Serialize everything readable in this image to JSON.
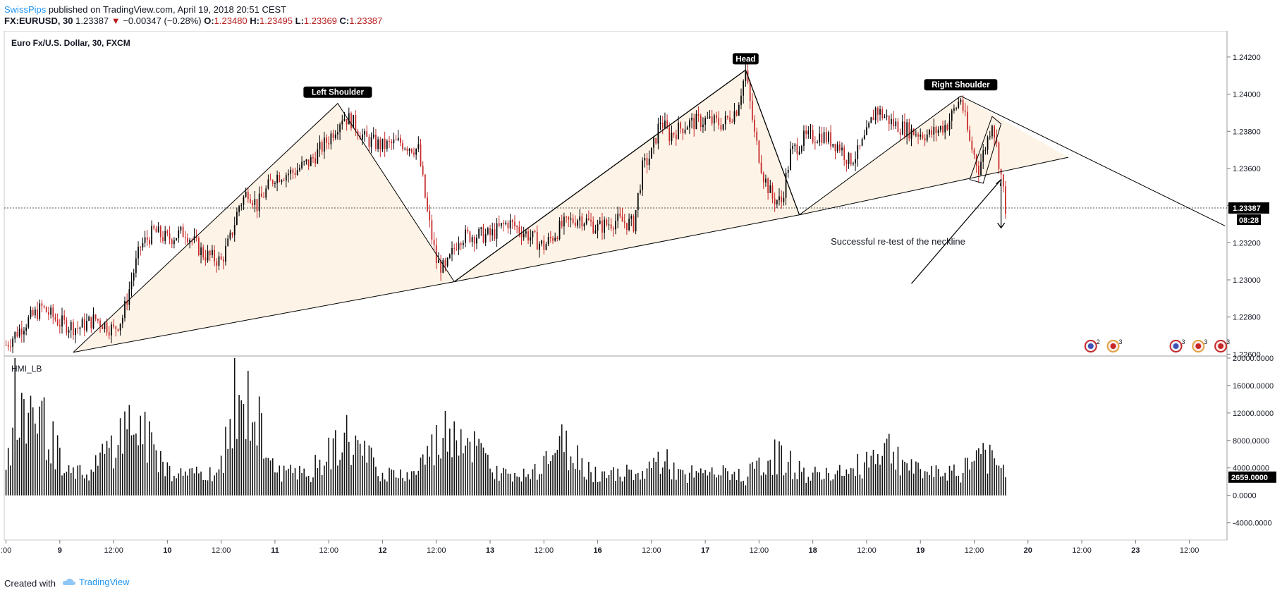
{
  "header": {
    "author": "SwissPips",
    "published_text": " published on TradingView.com, April 19, 2018 20:51 CEST",
    "symbol": "FX:EURUSD, 30",
    "last_price": "1.23387",
    "change": "−0.00347 (−0.28%)",
    "open_label": "O:",
    "open": "1.23480",
    "high_label": "H:",
    "high": "1.23495",
    "low_label": "L:",
    "low": "1.23369",
    "close_label": "C:",
    "close": "1.23387"
  },
  "footer": {
    "created_with": "Created with",
    "brand": "TradingView"
  },
  "colors": {
    "up": "#000000",
    "down": "#c62828",
    "pattern_fill": "#fdf3e6",
    "accent": "#2196f3"
  },
  "chart_data": {
    "type": "candlestick",
    "title": "Euro Fx/U.S. Dollar, 30, FXCM",
    "price_axis": {
      "ticks": [
        1.226,
        1.228,
        1.23,
        1.232,
        1.234,
        1.236,
        1.238,
        1.24,
        1.242
      ],
      "tick_labels": [
        "1.22600",
        "1.22800",
        "1.23000",
        "1.23200",
        "1.23400",
        "1.23600",
        "1.23800",
        "1.24000",
        "1.24200"
      ],
      "ylim": [
        1.2259,
        1.2434
      ],
      "current_price": 1.23387,
      "current_price_label": "1.23387",
      "countdown_label": "08:28"
    },
    "time_axis": {
      "labels": [
        ":00",
        "9",
        "12:00",
        "10",
        "12:00",
        "11",
        "12:00",
        "12",
        "12:00",
        "13",
        "12:00",
        "16",
        "12:00",
        "17",
        "12:00",
        "18",
        "12:00",
        "19",
        "12:00",
        "20",
        "12:00",
        "23",
        "12:00"
      ],
      "bold": [
        false,
        true,
        false,
        true,
        false,
        true,
        false,
        true,
        false,
        true,
        false,
        true,
        false,
        true,
        false,
        true,
        false,
        true,
        false,
        true,
        false,
        true,
        false
      ],
      "x_hours": [
        0,
        12,
        24,
        36,
        48,
        60,
        72,
        84,
        96,
        108,
        120,
        132,
        144,
        156,
        168,
        180,
        192,
        204,
        216,
        228,
        240,
        252,
        264
      ],
      "xlim": [
        -0.4,
        272.4
      ],
      "last_candle_hour": 223
    },
    "price_path": [
      [
        0,
        1.2265
      ],
      [
        4,
        1.2276
      ],
      [
        8,
        1.2285
      ],
      [
        12,
        1.2277
      ],
      [
        16,
        1.2274
      ],
      [
        20,
        1.2279
      ],
      [
        24,
        1.2273
      ],
      [
        26,
        1.228
      ],
      [
        28,
        1.23
      ],
      [
        30,
        1.2318
      ],
      [
        33,
        1.2326
      ],
      [
        36,
        1.2322
      ],
      [
        40,
        1.2326
      ],
      [
        44,
        1.2314
      ],
      [
        48,
        1.231
      ],
      [
        50,
        1.2322
      ],
      [
        52,
        1.234
      ],
      [
        54,
        1.2348
      ],
      [
        56,
        1.234
      ],
      [
        60,
        1.2356
      ],
      [
        64,
        1.2358
      ],
      [
        68,
        1.2364
      ],
      [
        72,
        1.2376
      ],
      [
        75,
        1.2388
      ],
      [
        77,
        1.2386
      ],
      [
        80,
        1.2376
      ],
      [
        84,
        1.2372
      ],
      [
        88,
        1.2374
      ],
      [
        92,
        1.237
      ],
      [
        94,
        1.2336
      ],
      [
        96,
        1.231
      ],
      [
        98,
        1.2305
      ],
      [
        101,
        1.2323
      ],
      [
        104,
        1.2324
      ],
      [
        108,
        1.2324
      ],
      [
        112,
        1.2331
      ],
      [
        116,
        1.2325
      ],
      [
        120,
        1.2318
      ],
      [
        124,
        1.2329
      ],
      [
        128,
        1.2334
      ],
      [
        132,
        1.2328
      ],
      [
        136,
        1.2332
      ],
      [
        140,
        1.233
      ],
      [
        142,
        1.236
      ],
      [
        144,
        1.2368
      ],
      [
        146,
        1.2386
      ],
      [
        148,
        1.2378
      ],
      [
        152,
        1.2384
      ],
      [
        156,
        1.2386
      ],
      [
        160,
        1.2384
      ],
      [
        163,
        1.2392
      ],
      [
        165,
        1.2412
      ],
      [
        167,
        1.2378
      ],
      [
        169,
        1.2356
      ],
      [
        171,
        1.2344
      ],
      [
        173,
        1.2342
      ],
      [
        175,
        1.2368
      ],
      [
        178,
        1.2376
      ],
      [
        182,
        1.2378
      ],
      [
        186,
        1.2372
      ],
      [
        188,
        1.2364
      ],
      [
        190,
        1.2368
      ],
      [
        192,
        1.2378
      ],
      [
        194,
        1.2392
      ],
      [
        196,
        1.2388
      ],
      [
        198,
        1.2384
      ],
      [
        202,
        1.238
      ],
      [
        206,
        1.2378
      ],
      [
        210,
        1.2384
      ],
      [
        213,
        1.2398
      ],
      [
        215,
        1.2374
      ],
      [
        217,
        1.236
      ],
      [
        219,
        1.2376
      ],
      [
        220,
        1.2386
      ],
      [
        221,
        1.2372
      ],
      [
        222,
        1.2356
      ],
      [
        223,
        1.2339
      ]
    ],
    "volume_indicator": {
      "name": "HMI_LB",
      "ticks": [
        -4000,
        0,
        4000,
        8000,
        12000,
        16000,
        20000
      ],
      "tick_labels": [
        "-4000.0000",
        "0.0000",
        "4000.0000",
        "8000.0000",
        "12000.0000",
        "16000.0000",
        "20000.0000"
      ],
      "ylim": [
        -6500,
        20300
      ],
      "current_value": 2659,
      "current_value_label": "2659.0000",
      "session_peaks": [
        {
          "start": 0,
          "end": 12,
          "peak": 20000
        },
        {
          "start": 20,
          "end": 36,
          "peak": 16000
        },
        {
          "start": 48,
          "end": 60,
          "peak": 20000
        },
        {
          "start": 68,
          "end": 84,
          "peak": 12500
        },
        {
          "start": 92,
          "end": 108,
          "peak": 16000
        },
        {
          "start": 116,
          "end": 132,
          "peak": 11000
        },
        {
          "start": 140,
          "end": 152,
          "peak": 8000
        },
        {
          "start": 164,
          "end": 180,
          "peak": 8500
        },
        {
          "start": 188,
          "end": 204,
          "peak": 11000
        },
        {
          "start": 212,
          "end": 223,
          "peak": 10000
        }
      ]
    },
    "pattern": {
      "type": "head-and-shoulders",
      "neckline": [
        [
          15,
          1.2261
        ],
        [
          100,
          1.2299
        ],
        [
          177,
          1.2335
        ],
        [
          237,
          1.2366
        ]
      ],
      "left_shoulder_triangle": [
        [
          15,
          1.2261
        ],
        [
          74,
          1.2395
        ],
        [
          100,
          1.2299
        ]
      ],
      "head_triangle": [
        [
          100,
          1.2299
        ],
        [
          165,
          1.2413
        ],
        [
          177,
          1.2335
        ]
      ],
      "right_shoulder_triangle": [
        [
          177,
          1.2335
        ],
        [
          213,
          1.2399
        ],
        [
          237,
          1.2366
        ]
      ],
      "right_shoulder_trend": [
        [
          213,
          1.2399
        ],
        [
          272,
          1.2329
        ]
      ],
      "small_channel": [
        [
          215,
          1.2354
        ],
        [
          220,
          1.2388
        ],
        [
          222,
          1.2384
        ],
        [
          218,
          1.2352
        ]
      ],
      "retest_arrow_line": [
        [
          202,
          1.2298
        ],
        [
          222,
          1.2354
        ]
      ],
      "down_arrow": [
        [
          222,
          1.2354
        ],
        [
          222,
          1.2328
        ]
      ]
    },
    "annotations": [
      {
        "text": "Left Shoulder",
        "x": 74,
        "y": 1.2395
      },
      {
        "text": "Head",
        "x": 165,
        "y": 1.2413
      },
      {
        "text": "Right Shoulder",
        "x": 213,
        "y": 1.2399
      },
      {
        "text": "Successful re-test of the neckline",
        "x": 199,
        "y": 1.2319
      }
    ],
    "event_markers": [
      {
        "x": 242,
        "label": "2"
      },
      {
        "x": 247,
        "label": "3"
      },
      {
        "x": 261,
        "label": "3"
      },
      {
        "x": 266,
        "label": "3"
      },
      {
        "x": 271,
        "label": "3"
      }
    ]
  }
}
